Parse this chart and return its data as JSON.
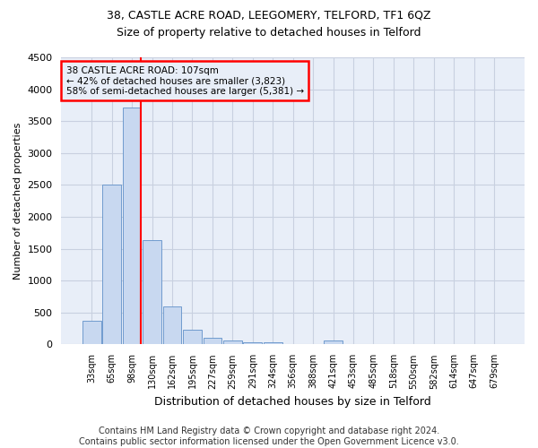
{
  "title": "38, CASTLE ACRE ROAD, LEEGOMERY, TELFORD, TF1 6QZ",
  "subtitle": "Size of property relative to detached houses in Telford",
  "xlabel": "Distribution of detached houses by size in Telford",
  "ylabel": "Number of detached properties",
  "footer_line1": "Contains HM Land Registry data © Crown copyright and database right 2024.",
  "footer_line2": "Contains public sector information licensed under the Open Government Licence v3.0.",
  "annotation_line1": "38 CASTLE ACRE ROAD: 107sqm",
  "annotation_line2": "← 42% of detached houses are smaller (3,823)",
  "annotation_line3": "58% of semi-detached houses are larger (5,381) →",
  "bar_color": "#c8d8f0",
  "bar_edge_color": "#6090c8",
  "grid_color": "#c8d0e0",
  "marker_color": "red",
  "background_color": "#ffffff",
  "plot_bg_color": "#e8eef8",
  "categories": [
    "33sqm",
    "65sqm",
    "98sqm",
    "130sqm",
    "162sqm",
    "195sqm",
    "227sqm",
    "259sqm",
    "291sqm",
    "324sqm",
    "356sqm",
    "388sqm",
    "421sqm",
    "453sqm",
    "485sqm",
    "518sqm",
    "550sqm",
    "582sqm",
    "614sqm",
    "647sqm",
    "679sqm"
  ],
  "values": [
    370,
    2510,
    3720,
    1630,
    590,
    230,
    110,
    65,
    40,
    40,
    0,
    0,
    60,
    0,
    0,
    0,
    0,
    0,
    0,
    0,
    0
  ],
  "ylim": [
    0,
    4500
  ],
  "yticks": [
    0,
    500,
    1000,
    1500,
    2000,
    2500,
    3000,
    3500,
    4000,
    4500
  ],
  "marker_bin_index": 2,
  "title_fontsize": 9,
  "subtitle_fontsize": 9,
  "ylabel_fontsize": 8,
  "xlabel_fontsize": 9,
  "footer_fontsize": 7
}
